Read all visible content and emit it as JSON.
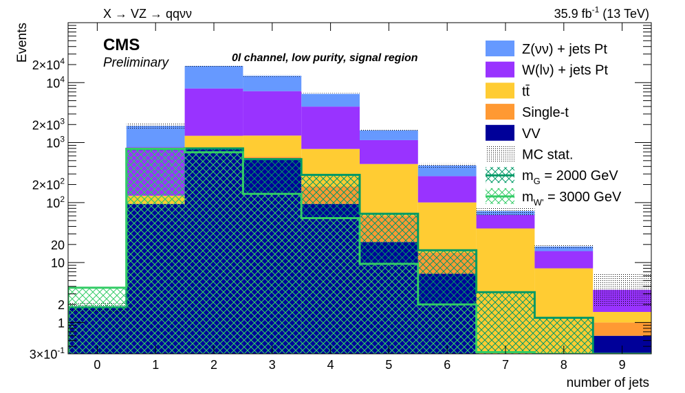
{
  "chart_data": {
    "type": "bar",
    "stacked": true,
    "y_scale": "log",
    "ylim": [
      0.3,
      100000
    ],
    "xlim": [
      -0.5,
      9.5
    ],
    "title_left": "X → VZ → qqνν",
    "lumi": {
      "value": "35.9 fb",
      "exponent": "-1",
      "energy": "(13 TeV)"
    },
    "cms_label": "CMS",
    "cms_sublabel": "Preliminary",
    "region_label": "0l channel, low purity, signal region",
    "xlabel": "number of jets",
    "ylabel": "Events",
    "x_ticks": [
      "0",
      "1",
      "2",
      "3",
      "4",
      "5",
      "6",
      "7",
      "8",
      "9"
    ],
    "y_tick_labels": [
      {
        "v": 0.3,
        "base": "3×10",
        "exp": "-1"
      },
      {
        "v": 1,
        "base": "1",
        "exp": ""
      },
      {
        "v": 2,
        "base": "2",
        "exp": ""
      },
      {
        "v": 10,
        "base": "10",
        "exp": ""
      },
      {
        "v": 20,
        "base": "20",
        "exp": ""
      },
      {
        "v": 100,
        "base": "10",
        "exp": "2"
      },
      {
        "v": 200,
        "base": "2×10",
        "exp": "2"
      },
      {
        "v": 1000,
        "base": "10",
        "exp": "3"
      },
      {
        "v": 2000,
        "base": "2×10",
        "exp": "3"
      },
      {
        "v": 10000,
        "base": "10",
        "exp": "4"
      },
      {
        "v": 20000,
        "base": "2×10",
        "exp": "4"
      }
    ],
    "categories": [
      "0",
      "1",
      "2",
      "3",
      "4",
      "5",
      "6",
      "7",
      "8",
      "9"
    ],
    "series": [
      {
        "name": "VV",
        "color": "#000099",
        "values": [
          1.8,
          95,
          800,
          540,
          95,
          22,
          6.5,
          0,
          0,
          0.6
        ]
      },
      {
        "name": "Single-t",
        "color": "#ff9933",
        "values": [
          0,
          0,
          0,
          40,
          90,
          38,
          8,
          0,
          0,
          0.4
        ]
      },
      {
        "name": "tt̄",
        "color": "#ffcc33",
        "values": [
          0,
          35,
          500,
          730,
          600,
          380,
          86,
          37,
          8,
          0.5
        ]
      },
      {
        "name": "W(lν) + jets Pt",
        "color": "#9933ff",
        "values": [
          0,
          710,
          6700,
          5900,
          3200,
          660,
          175,
          25,
          7.5,
          2.0
        ]
      },
      {
        "name": "Z(νν) + jets Pt",
        "color": "#6699ff",
        "values": [
          0,
          1060,
          11000,
          5800,
          2500,
          500,
          140,
          10,
          3.0,
          0
        ]
      }
    ],
    "mc_stat_top": [
      2.2,
      2100,
      19500,
      13500,
      6700,
      1700,
      450,
      85,
      20,
      6.5
    ],
    "signals": [
      {
        "name": "m_G = 2000 GeV",
        "label_base": "m",
        "label_sub": "G",
        "label_rest": " = 2000 GeV",
        "color": "#009966",
        "values": [
          1.8,
          780,
          800,
          530,
          290,
          65,
          16,
          3.2,
          1.2,
          0.3
        ]
      },
      {
        "name": "m_W' = 3000 GeV",
        "label_base": "m",
        "label_sub": "W'",
        "label_rest": " = 3000 GeV",
        "color": "#33cc66",
        "values": [
          3.8,
          790,
          690,
          140,
          55,
          9.5,
          2.0,
          0.32,
          0.3,
          0.3
        ]
      }
    ],
    "legend": {
      "position": "top-right",
      "entries": [
        {
          "label": "Z(νν) + jets Pt",
          "kind": "fill",
          "color": "#6699ff"
        },
        {
          "label": "W(lν) + jets Pt",
          "kind": "fill",
          "color": "#9933ff"
        },
        {
          "label": "tt̄",
          "kind": "fill",
          "color": "#ffcc33"
        },
        {
          "label": "Single-t",
          "kind": "fill",
          "color": "#ff9933"
        },
        {
          "label": "VV",
          "kind": "fill",
          "color": "#000099"
        },
        {
          "label": "MC stat.",
          "kind": "dots",
          "color": "#000000"
        }
      ]
    }
  }
}
